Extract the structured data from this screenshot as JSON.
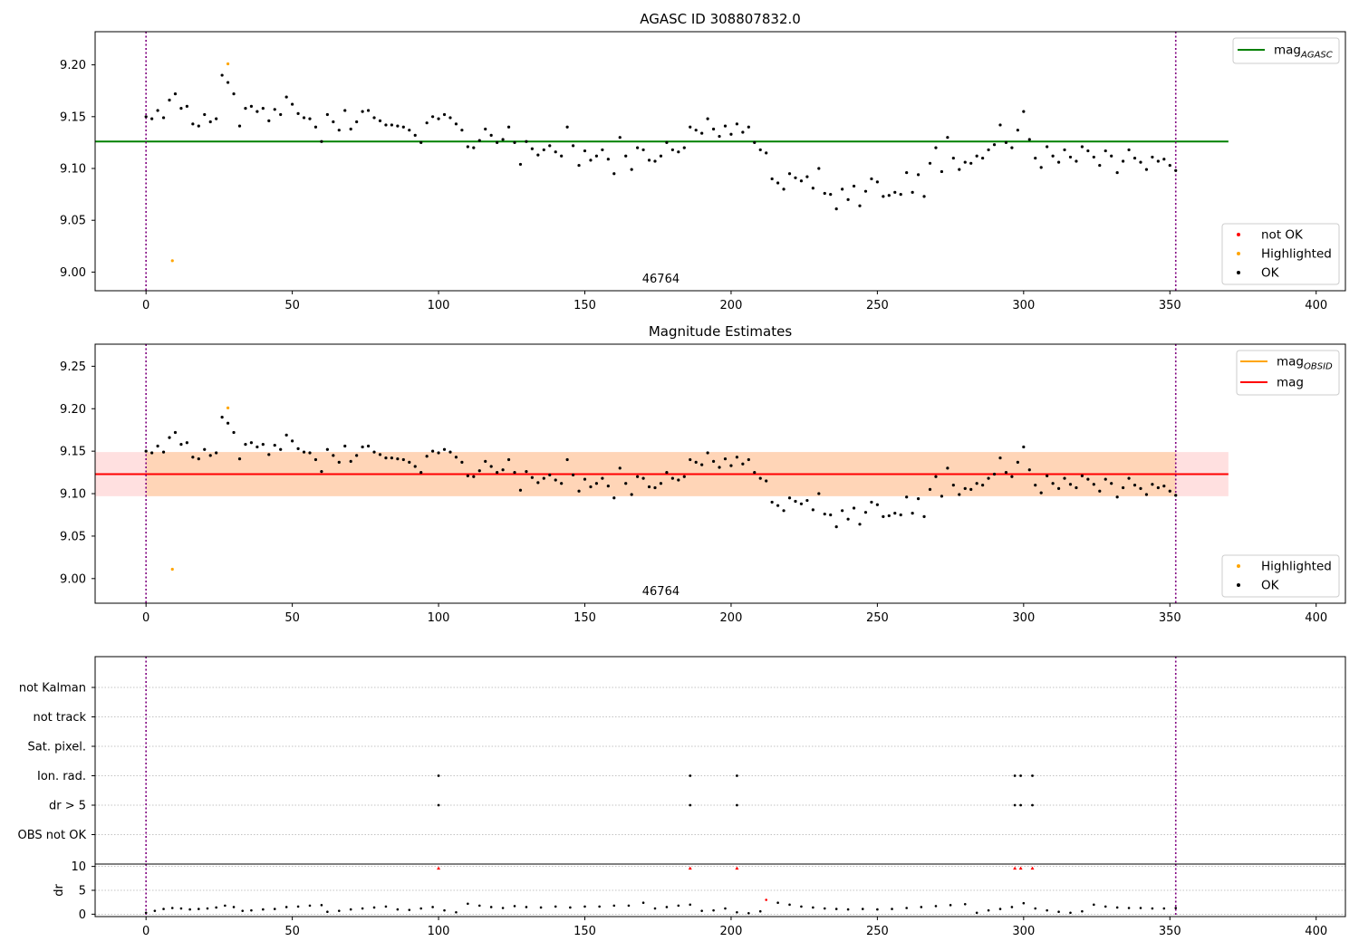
{
  "chart_data": [
    {
      "type": "scatter",
      "title": "AGASC ID 308807832.0",
      "xlim": [
        -17.4,
        410
      ],
      "ylim": [
        8.982,
        9.232
      ],
      "xticks": [
        0,
        50,
        100,
        150,
        200,
        250,
        300,
        350,
        400
      ],
      "yticks": [
        9.0,
        9.05,
        9.1,
        9.15,
        9.2
      ],
      "ytick_labels": [
        "9.00",
        "9.05",
        "9.10",
        "9.15",
        "9.20"
      ],
      "obsid_marks": [
        0,
        352
      ],
      "obsid_label": "46764",
      "reference_line": {
        "name": "mag_AGASC",
        "y": 9.126,
        "x_range": [
          -17.4,
          370
        ],
        "color": "#008000"
      },
      "legend_lines": [
        {
          "main": "mag",
          "sub": "AGASC",
          "color": "#008000"
        }
      ],
      "legend_points": [
        {
          "label": "not OK",
          "color": "#ff0000"
        },
        {
          "label": "Highlighted",
          "color": "#ffa500"
        },
        {
          "label": "OK",
          "color": "#000000"
        }
      ],
      "highlighted_points": [
        [
          9,
          9.011
        ],
        [
          28,
          9.201
        ]
      ],
      "series_ok_points": [
        [
          0,
          9.15
        ],
        [
          2,
          9.148
        ],
        [
          4,
          9.156
        ],
        [
          6,
          9.149
        ],
        [
          8,
          9.166
        ],
        [
          10,
          9.172
        ],
        [
          12,
          9.158
        ],
        [
          14,
          9.16
        ],
        [
          16,
          9.143
        ],
        [
          18,
          9.141
        ],
        [
          20,
          9.152
        ],
        [
          22,
          9.145
        ],
        [
          24,
          9.148
        ],
        [
          26,
          9.19
        ],
        [
          28,
          9.183
        ],
        [
          30,
          9.172
        ],
        [
          32,
          9.141
        ],
        [
          34,
          9.158
        ],
        [
          36,
          9.16
        ],
        [
          38,
          9.155
        ],
        [
          40,
          9.158
        ],
        [
          42,
          9.146
        ],
        [
          44,
          9.157
        ],
        [
          46,
          9.152
        ],
        [
          48,
          9.169
        ],
        [
          50,
          9.162
        ],
        [
          52,
          9.153
        ],
        [
          54,
          9.149
        ],
        [
          56,
          9.148
        ],
        [
          58,
          9.14
        ],
        [
          60,
          9.126
        ],
        [
          62,
          9.152
        ],
        [
          64,
          9.145
        ],
        [
          66,
          9.137
        ],
        [
          68,
          9.156
        ],
        [
          70,
          9.138
        ],
        [
          72,
          9.145
        ],
        [
          74,
          9.155
        ],
        [
          76,
          9.156
        ],
        [
          78,
          9.149
        ],
        [
          80,
          9.146
        ],
        [
          82,
          9.142
        ],
        [
          84,
          9.142
        ],
        [
          86,
          9.141
        ],
        [
          88,
          9.14
        ],
        [
          90,
          9.137
        ],
        [
          92,
          9.132
        ],
        [
          94,
          9.125
        ],
        [
          96,
          9.144
        ],
        [
          98,
          9.15
        ],
        [
          100,
          9.148
        ],
        [
          102,
          9.152
        ],
        [
          104,
          9.149
        ],
        [
          106,
          9.143
        ],
        [
          108,
          9.137
        ],
        [
          110,
          9.121
        ],
        [
          112,
          9.12
        ],
        [
          114,
          9.127
        ],
        [
          116,
          9.138
        ],
        [
          118,
          9.132
        ],
        [
          120,
          9.125
        ],
        [
          122,
          9.128
        ],
        [
          124,
          9.14
        ],
        [
          126,
          9.125
        ],
        [
          128,
          9.104
        ],
        [
          130,
          9.126
        ],
        [
          132,
          9.119
        ],
        [
          134,
          9.113
        ],
        [
          136,
          9.118
        ],
        [
          138,
          9.122
        ],
        [
          140,
          9.116
        ],
        [
          142,
          9.112
        ],
        [
          144,
          9.14
        ],
        [
          146,
          9.122
        ],
        [
          148,
          9.103
        ],
        [
          150,
          9.117
        ],
        [
          152,
          9.108
        ],
        [
          154,
          9.112
        ],
        [
          156,
          9.118
        ],
        [
          158,
          9.109
        ],
        [
          160,
          9.095
        ],
        [
          162,
          9.13
        ],
        [
          164,
          9.112
        ],
        [
          166,
          9.099
        ],
        [
          168,
          9.12
        ],
        [
          170,
          9.118
        ],
        [
          172,
          9.108
        ],
        [
          174,
          9.107
        ],
        [
          176,
          9.112
        ],
        [
          178,
          9.125
        ],
        [
          180,
          9.118
        ],
        [
          182,
          9.116
        ],
        [
          184,
          9.12
        ],
        [
          186,
          9.14
        ],
        [
          188,
          9.137
        ],
        [
          190,
          9.134
        ],
        [
          192,
          9.148
        ],
        [
          194,
          9.138
        ],
        [
          196,
          9.131
        ],
        [
          198,
          9.141
        ],
        [
          200,
          9.133
        ],
        [
          202,
          9.143
        ],
        [
          204,
          9.135
        ],
        [
          206,
          9.14
        ],
        [
          208,
          9.125
        ],
        [
          210,
          9.118
        ],
        [
          212,
          9.115
        ],
        [
          214,
          9.09
        ],
        [
          216,
          9.086
        ],
        [
          218,
          9.08
        ],
        [
          220,
          9.095
        ],
        [
          222,
          9.091
        ],
        [
          224,
          9.088
        ],
        [
          226,
          9.092
        ],
        [
          228,
          9.081
        ],
        [
          230,
          9.1
        ],
        [
          232,
          9.076
        ],
        [
          234,
          9.075
        ],
        [
          236,
          9.061
        ],
        [
          238,
          9.08
        ],
        [
          240,
          9.07
        ],
        [
          242,
          9.083
        ],
        [
          244,
          9.064
        ],
        [
          246,
          9.078
        ],
        [
          248,
          9.09
        ],
        [
          250,
          9.087
        ],
        [
          252,
          9.073
        ],
        [
          254,
          9.074
        ],
        [
          256,
          9.077
        ],
        [
          258,
          9.075
        ],
        [
          260,
          9.096
        ],
        [
          262,
          9.077
        ],
        [
          264,
          9.094
        ],
        [
          266,
          9.073
        ],
        [
          268,
          9.105
        ],
        [
          270,
          9.12
        ],
        [
          272,
          9.097
        ],
        [
          274,
          9.13
        ],
        [
          276,
          9.11
        ],
        [
          278,
          9.099
        ],
        [
          280,
          9.106
        ],
        [
          282,
          9.105
        ],
        [
          284,
          9.112
        ],
        [
          286,
          9.11
        ],
        [
          288,
          9.118
        ],
        [
          290,
          9.123
        ],
        [
          292,
          9.142
        ],
        [
          294,
          9.125
        ],
        [
          296,
          9.12
        ],
        [
          298,
          9.137
        ],
        [
          300,
          9.155
        ],
        [
          302,
          9.128
        ],
        [
          304,
          9.11
        ],
        [
          306,
          9.101
        ],
        [
          308,
          9.121
        ],
        [
          310,
          9.112
        ],
        [
          312,
          9.106
        ],
        [
          314,
          9.118
        ],
        [
          316,
          9.111
        ],
        [
          318,
          9.107
        ],
        [
          320,
          9.121
        ],
        [
          322,
          9.117
        ],
        [
          324,
          9.111
        ],
        [
          326,
          9.103
        ],
        [
          328,
          9.117
        ],
        [
          330,
          9.112
        ],
        [
          332,
          9.096
        ],
        [
          334,
          9.107
        ],
        [
          336,
          9.118
        ],
        [
          338,
          9.11
        ],
        [
          340,
          9.106
        ],
        [
          342,
          9.099
        ],
        [
          344,
          9.111
        ],
        [
          346,
          9.107
        ],
        [
          348,
          9.109
        ],
        [
          350,
          9.103
        ],
        [
          352,
          9.098
        ]
      ]
    },
    {
      "type": "scatter",
      "title": "Magnitude Estimates",
      "xlim": [
        -17.4,
        410
      ],
      "ylim": [
        8.971,
        9.276
      ],
      "xticks": [
        0,
        50,
        100,
        150,
        200,
        250,
        300,
        350,
        400
      ],
      "yticks": [
        9.0,
        9.05,
        9.1,
        9.15,
        9.2,
        9.25
      ],
      "ytick_labels": [
        "9.00",
        "9.05",
        "9.10",
        "9.15",
        "9.20",
        "9.25"
      ],
      "obsid_marks": [
        0,
        352
      ],
      "obsid_label": "46764",
      "mag_line": {
        "name": "mag",
        "y": 9.123,
        "band": [
          9.097,
          9.149
        ],
        "x_range": [
          -17.4,
          370
        ],
        "color": "#ff0000"
      },
      "mag_obsid_line": {
        "name": "mag_OBSID",
        "color": "#ffa500"
      },
      "legend_lines": [
        {
          "main": "mag",
          "sub": "OBSID",
          "color": "#ffa500"
        },
        {
          "main": "mag",
          "sub": "",
          "color": "#ff0000"
        }
      ],
      "legend_points": [
        {
          "label": "Highlighted",
          "color": "#ffa500"
        },
        {
          "label": "OK",
          "color": "#000000"
        }
      ],
      "highlighted_points": [
        [
          9,
          9.011
        ],
        [
          28,
          9.201
        ]
      ],
      "uses_ok_points_of_panel": 0
    },
    {
      "type": "scatter",
      "title": "",
      "categories": [
        "not Kalman",
        "not track",
        "Sat. pixel.",
        "Ion. rad.",
        "dr > 5",
        "OBS not OK"
      ],
      "xlim": [
        -17.4,
        410
      ],
      "obsid_marks": [
        0,
        352
      ],
      "flag_points": {
        "Ion. rad.": [
          100,
          186,
          202,
          297,
          299,
          303
        ],
        "dr > 5": [
          100,
          186,
          202,
          297,
          299,
          303
        ]
      }
    },
    {
      "type": "scatter",
      "title": "",
      "ylabel": "dr",
      "xlim": [
        -17.4,
        410
      ],
      "ylim": [
        -0.5,
        10.5
      ],
      "xticks": [
        0,
        50,
        100,
        150,
        200,
        250,
        300,
        350,
        400
      ],
      "yticks": [
        0,
        5,
        10
      ],
      "ytick_labels": [
        "0",
        "5",
        "10"
      ],
      "obsid_marks": [
        0,
        352
      ],
      "high_dr_points": [
        [
          100,
          10
        ],
        [
          186,
          10
        ],
        [
          202,
          10
        ],
        [
          297,
          10
        ],
        [
          299,
          10
        ],
        [
          303,
          10
        ]
      ],
      "dr_points": [
        [
          0,
          0.3
        ],
        [
          3,
          0.7
        ],
        [
          6,
          1.1
        ],
        [
          9,
          1.3
        ],
        [
          12,
          1.2
        ],
        [
          15,
          1.0
        ],
        [
          18,
          1.1
        ],
        [
          21,
          1.2
        ],
        [
          24,
          1.4
        ],
        [
          27,
          1.8
        ],
        [
          30,
          1.5
        ],
        [
          33,
          0.7
        ],
        [
          36,
          0.8
        ],
        [
          40,
          1.0
        ],
        [
          44,
          1.1
        ],
        [
          48,
          1.5
        ],
        [
          52,
          1.6
        ],
        [
          56,
          1.8
        ],
        [
          60,
          1.9
        ],
        [
          62,
          0.5
        ],
        [
          66,
          0.7
        ],
        [
          70,
          1.0
        ],
        [
          74,
          1.2
        ],
        [
          78,
          1.4
        ],
        [
          82,
          1.6
        ],
        [
          86,
          1.0
        ],
        [
          90,
          0.9
        ],
        [
          94,
          1.2
        ],
        [
          98,
          1.5
        ],
        [
          102,
          0.8
        ],
        [
          106,
          0.4
        ],
        [
          110,
          2.2
        ],
        [
          114,
          1.8
        ],
        [
          118,
          1.5
        ],
        [
          122,
          1.3
        ],
        [
          126,
          1.7
        ],
        [
          130,
          1.5
        ],
        [
          135,
          1.4
        ],
        [
          140,
          1.6
        ],
        [
          145,
          1.4
        ],
        [
          150,
          1.6
        ],
        [
          155,
          1.6
        ],
        [
          160,
          1.8
        ],
        [
          165,
          1.8
        ],
        [
          170,
          2.4
        ],
        [
          174,
          1.2
        ],
        [
          178,
          1.5
        ],
        [
          182,
          1.8
        ],
        [
          186,
          2.0
        ],
        [
          190,
          0.7
        ],
        [
          194,
          0.8
        ],
        [
          198,
          1.2
        ],
        [
          202,
          0.4
        ],
        [
          206,
          0.2
        ],
        [
          210,
          0.6
        ],
        [
          212,
          3.0
        ],
        [
          216,
          2.4
        ],
        [
          220,
          2.0
        ],
        [
          224,
          1.6
        ],
        [
          228,
          1.4
        ],
        [
          232,
          1.2
        ],
        [
          236,
          1.1
        ],
        [
          240,
          1.0
        ],
        [
          245,
          1.1
        ],
        [
          250,
          1.0
        ],
        [
          255,
          1.1
        ],
        [
          260,
          1.3
        ],
        [
          265,
          1.5
        ],
        [
          270,
          1.7
        ],
        [
          275,
          1.9
        ],
        [
          280,
          2.1
        ],
        [
          284,
          0.3
        ],
        [
          288,
          0.8
        ],
        [
          292,
          1.1
        ],
        [
          296,
          1.5
        ],
        [
          300,
          2.3
        ],
        [
          304,
          1.2
        ],
        [
          308,
          0.8
        ],
        [
          312,
          0.5
        ],
        [
          316,
          0.3
        ],
        [
          320,
          0.6
        ],
        [
          324,
          2.0
        ],
        [
          328,
          1.6
        ],
        [
          332,
          1.4
        ],
        [
          336,
          1.3
        ],
        [
          340,
          1.3
        ],
        [
          344,
          1.2
        ],
        [
          348,
          1.2
        ],
        [
          352,
          1.3
        ]
      ]
    }
  ]
}
